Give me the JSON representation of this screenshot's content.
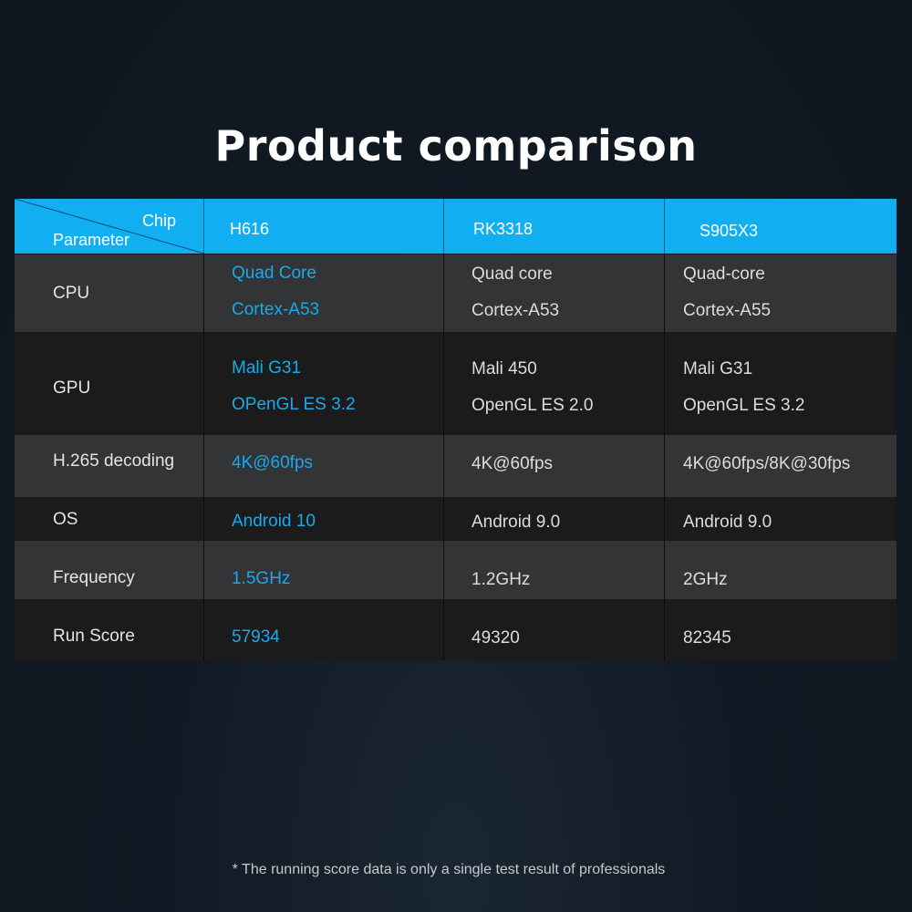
{
  "title": "Product comparison",
  "header": {
    "chip_label": "Chip",
    "parameter_label": "Parameter",
    "columns": [
      "H616",
      "RK3318",
      "S905X3"
    ]
  },
  "rows": [
    {
      "param": "CPU",
      "values": [
        [
          "Quad Core",
          "Cortex-A53"
        ],
        [
          "Quad core",
          "Cortex-A53"
        ],
        [
          "Quad-core",
          "Cortex-A55"
        ]
      ]
    },
    {
      "param": "GPU",
      "values": [
        [
          "Mali G31",
          "OPenGL ES 3.2"
        ],
        [
          "Mali 450",
          "OpenGL ES 2.0"
        ],
        [
          "Mali G31",
          "OpenGL ES 3.2"
        ]
      ]
    },
    {
      "param": "H.265 decoding",
      "values": [
        [
          "4K@60fps"
        ],
        [
          "4K@60fps"
        ],
        [
          "4K@60fps/8K@30fps"
        ]
      ]
    },
    {
      "param": "OS",
      "values": [
        [
          "Android 10"
        ],
        [
          "Android 9.0"
        ],
        [
          "Android 9.0"
        ]
      ]
    },
    {
      "param": "Frequency",
      "values": [
        [
          "1.5GHz"
        ],
        [
          "1.2GHz"
        ],
        [
          "2GHz"
        ]
      ]
    },
    {
      "param": "Run Score",
      "values": [
        [
          "57934"
        ],
        [
          "49320"
        ],
        [
          "82345"
        ]
      ]
    }
  ],
  "footnote": "* The running score data is only a single test result of professionals",
  "colors": {
    "header_bg": "#12aef2",
    "highlight_text": "#19a9ec",
    "row_light": "#323436",
    "row_dark": "#1b1b1c"
  }
}
